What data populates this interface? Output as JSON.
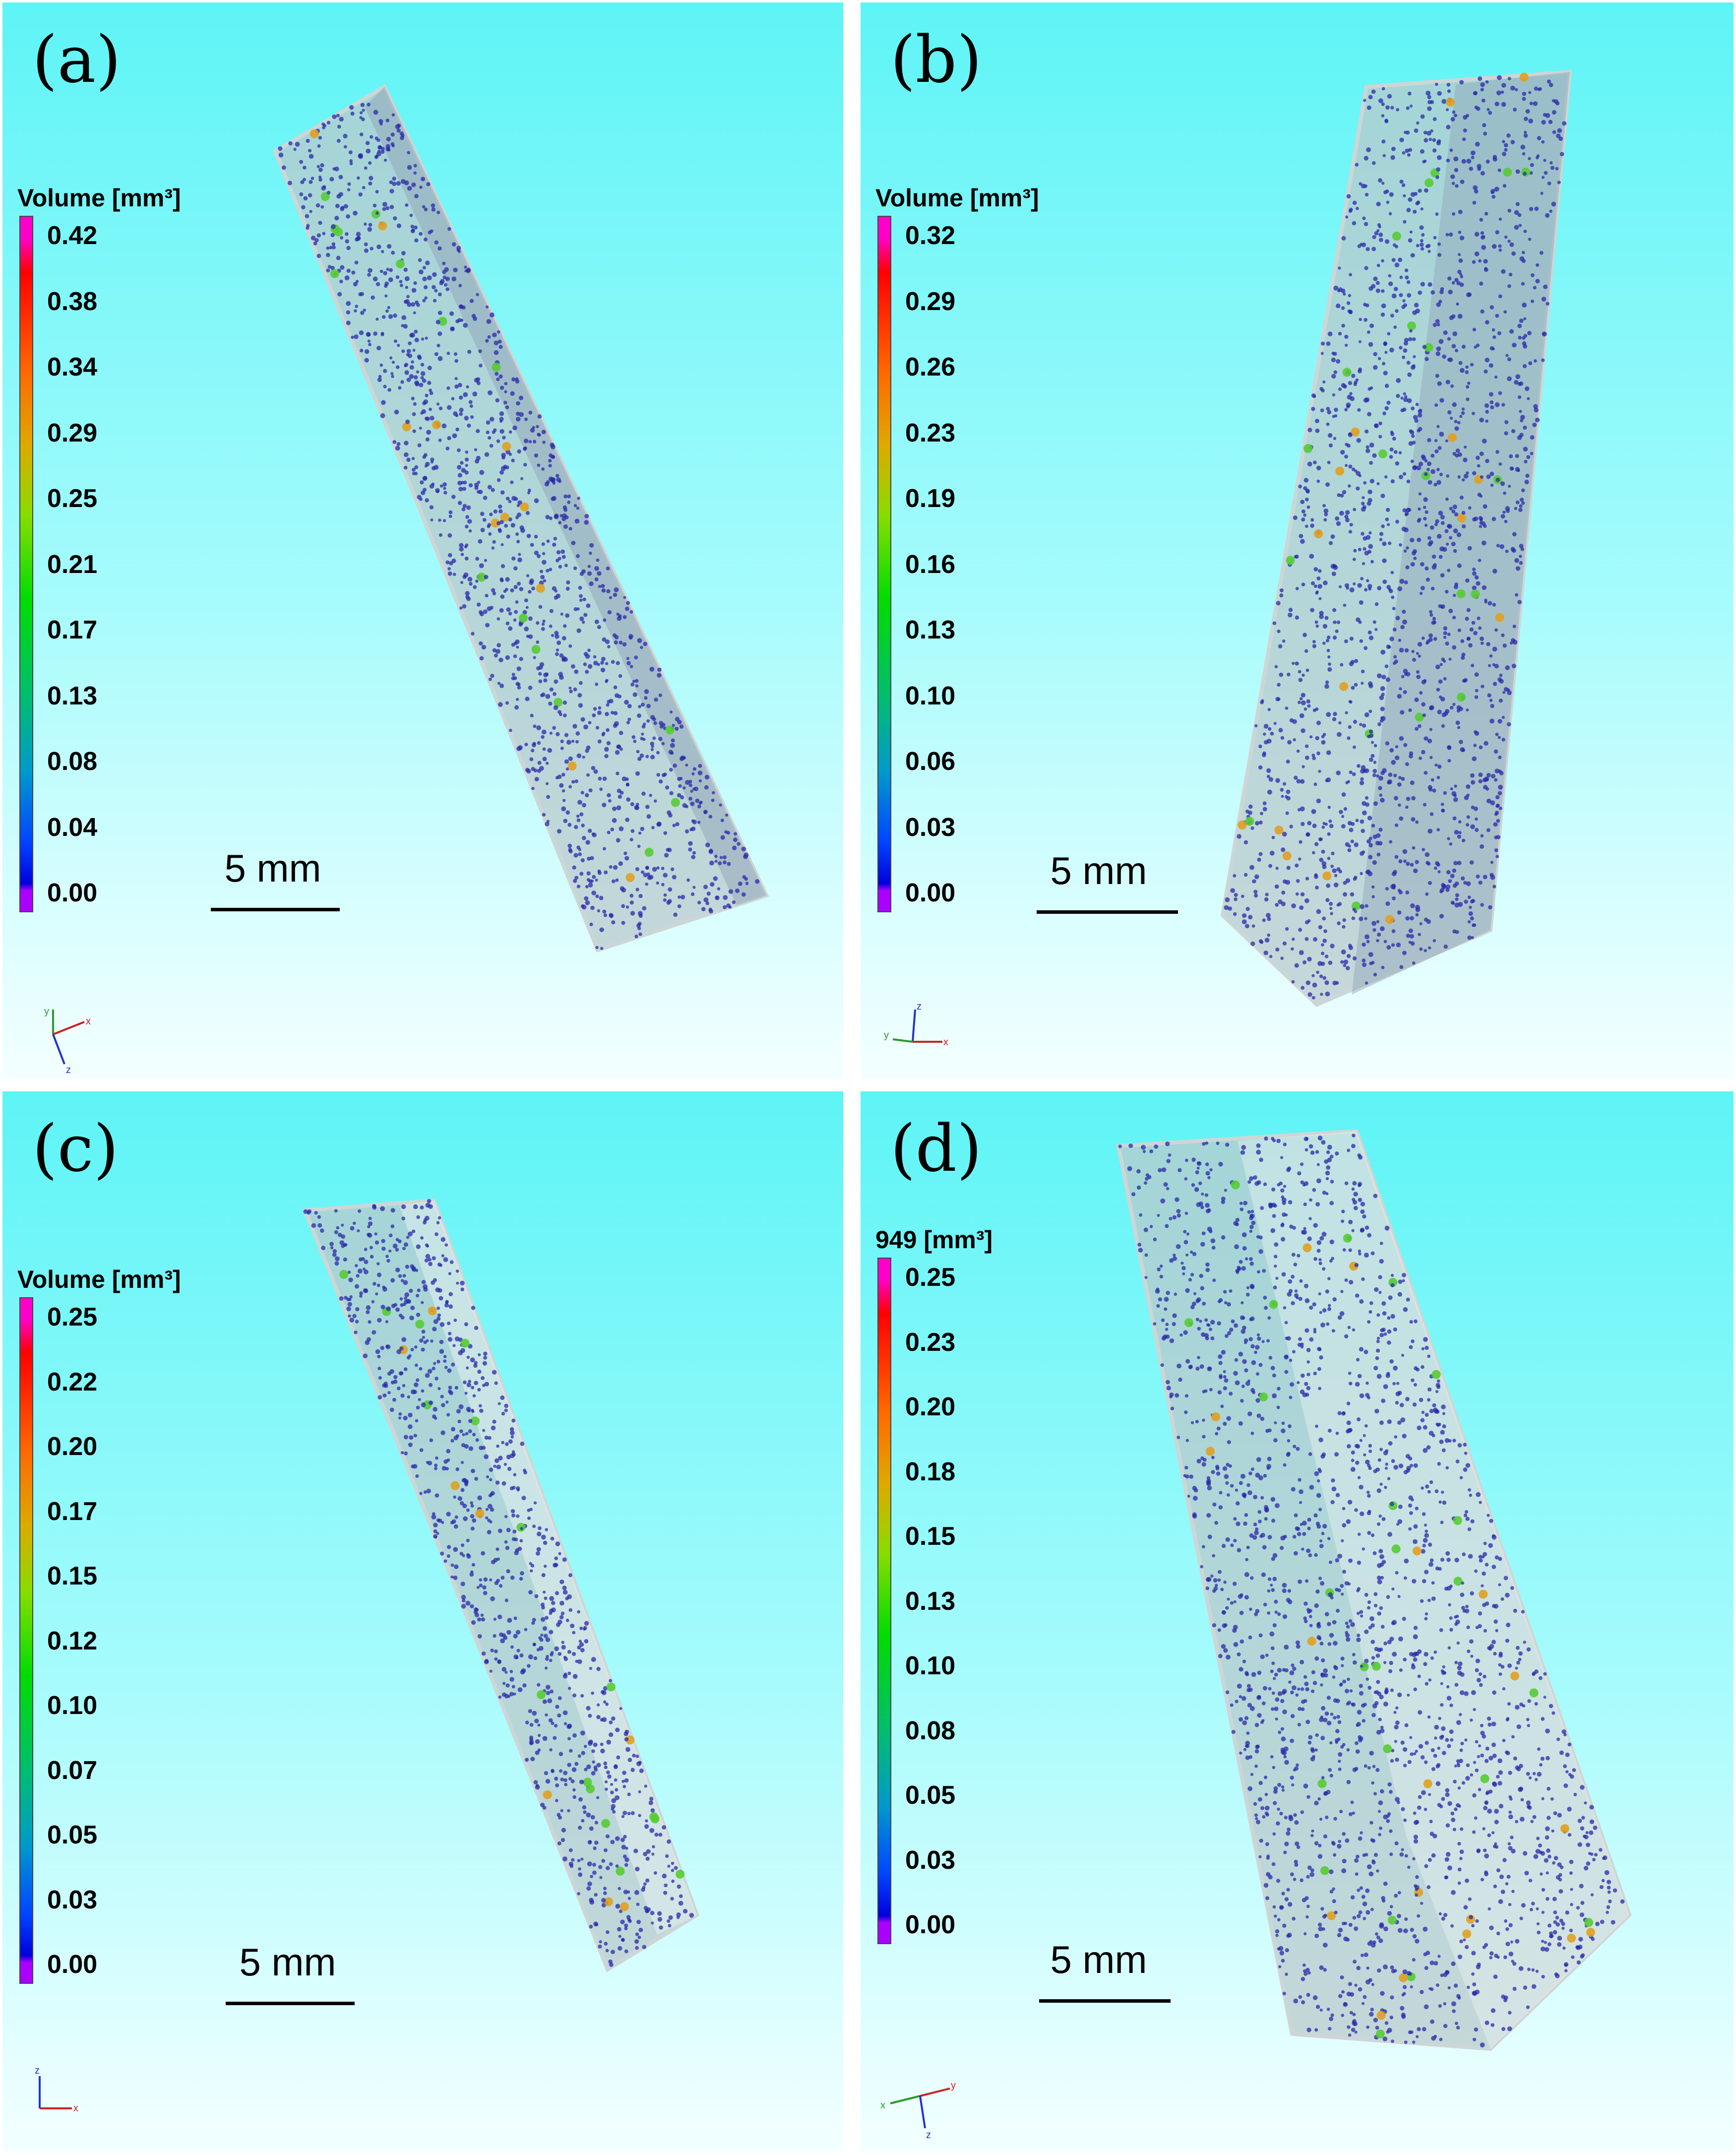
{
  "panels": [
    {
      "label": "(a)",
      "colorbar_title": "Volume [mm³]",
      "ticks": [
        "0.42",
        "0.38",
        "0.34",
        "0.29",
        "0.25",
        "0.21",
        "0.17",
        "0.13",
        "0.08",
        "0.04",
        "0.00"
      ],
      "scale_label": "5 mm",
      "axes": {
        "a": "y",
        "b": "x",
        "c": "z"
      }
    },
    {
      "label": "(b)",
      "colorbar_title": "Volume [mm³]",
      "ticks": [
        "0.32",
        "0.29",
        "0.26",
        "0.23",
        "0.19",
        "0.16",
        "0.13",
        "0.10",
        "0.06",
        "0.03",
        "0.00"
      ],
      "scale_label": "5 mm",
      "axes": {
        "a": "z",
        "b": "y",
        "c": "x"
      }
    },
    {
      "label": "(c)",
      "colorbar_title": "Volume [mm³]",
      "ticks": [
        "0.25",
        "0.22",
        "0.20",
        "0.17",
        "0.15",
        "0.12",
        "0.10",
        "0.07",
        "0.05",
        "0.03",
        "0.00"
      ],
      "scale_label": "5 mm",
      "axes": {
        "a": "z",
        "b": "x",
        "c": ""
      }
    },
    {
      "label": "(d)",
      "colorbar_title": "949 [mm³]",
      "ticks": [
        "0.25",
        "0.23",
        "0.20",
        "0.18",
        "0.15",
        "0.13",
        "0.10",
        "0.08",
        "0.05",
        "0.03",
        "0.00"
      ],
      "scale_label": "5 mm",
      "axes": {
        "a": "x",
        "b": "y",
        "c": "z"
      }
    }
  ],
  "colors": {
    "background_top": "#5ef4f6",
    "background_bottom": "#f4ffff",
    "specimen_fill": "#b9c9cc",
    "pore_color": "#2a2aa8"
  }
}
